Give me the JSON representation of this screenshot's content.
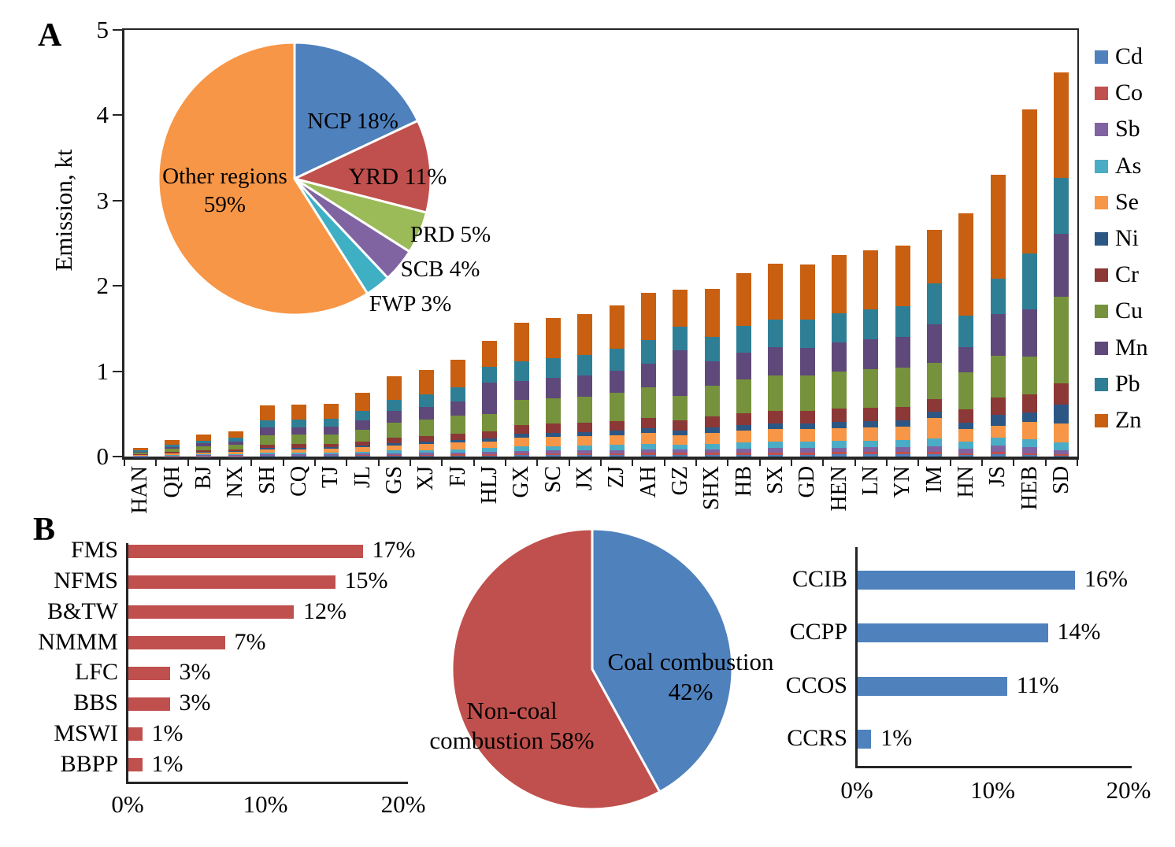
{
  "panels": {
    "a_label": "A",
    "b_label": "B"
  },
  "chart_data": [
    {
      "id": "provincial_emissions",
      "type": "bar",
      "stacked": true,
      "orientation": "vertical",
      "title": "",
      "xlabel": "",
      "ylabel": "Emission, kt",
      "ylim": [
        0,
        5
      ],
      "yticks": [
        "0",
        "1",
        "2",
        "3",
        "4",
        "5"
      ],
      "grid": false,
      "legend_position": "right",
      "categories": [
        "HAN",
        "QH",
        "BJ",
        "NX",
        "SH",
        "CQ",
        "TJ",
        "JL",
        "GS",
        "XJ",
        "FJ",
        "HLJ",
        "GX",
        "SC",
        "JX",
        "ZJ",
        "AH",
        "GZ",
        "SHX",
        "HB",
        "SX",
        "GD",
        "HEN",
        "LN",
        "YN",
        "IM",
        "HN",
        "JS",
        "HEB",
        "SD"
      ],
      "totals_kt": [
        0.1,
        0.19,
        0.26,
        0.3,
        0.6,
        0.61,
        0.62,
        0.75,
        0.94,
        1.02,
        1.14,
        1.36,
        1.57,
        1.62,
        1.67,
        1.77,
        1.92,
        1.96,
        1.97,
        2.15,
        2.26,
        2.25,
        2.36,
        2.42,
        2.47,
        2.66,
        2.85,
        3.3,
        4.07,
        4.5
      ],
      "series_names": [
        "Cd",
        "Co",
        "Sb",
        "As",
        "Se",
        "Ni",
        "Cr",
        "Cu",
        "Mn",
        "Pb",
        "Zn"
      ],
      "series_colors": [
        "#4F81BD",
        "#C0504D",
        "#8064A2",
        "#4BACC6",
        "#F79646",
        "#2C5784",
        "#8C3836",
        "#76923C",
        "#5F497A",
        "#2E7F96",
        "#C95F10"
      ],
      "composition_profiles": {
        "small": [
          0.012,
          0.015,
          0.03,
          0.045,
          0.08,
          0.035,
          0.07,
          0.18,
          0.13,
          0.13,
          0.273
        ],
        "default": [
          0.01,
          0.012,
          0.022,
          0.033,
          0.065,
          0.03,
          0.065,
          0.185,
          0.145,
          0.145,
          0.288
        ],
        "mn_heavy": [
          0.01,
          0.012,
          0.02,
          0.03,
          0.055,
          0.028,
          0.06,
          0.15,
          0.27,
          0.14,
          0.225
        ],
        "se_pb": [
          0.01,
          0.012,
          0.022,
          0.035,
          0.09,
          0.03,
          0.055,
          0.16,
          0.17,
          0.18,
          0.236
        ],
        "zn_heavy": [
          0.006,
          0.008,
          0.018,
          0.028,
          0.055,
          0.025,
          0.055,
          0.15,
          0.105,
          0.129,
          0.421
        ],
        "js": [
          0.008,
          0.01,
          0.022,
          0.028,
          0.042,
          0.037,
          0.062,
          0.15,
          0.147,
          0.127,
          0.367
        ],
        "heb": [
          0.005,
          0.005,
          0.018,
          0.022,
          0.05,
          0.027,
          0.052,
          0.11,
          0.135,
          0.16,
          0.416
        ],
        "cu_heavy": [
          0.003,
          0.003,
          0.01,
          0.02,
          0.05,
          0.05,
          0.055,
          0.225,
          0.165,
          0.145,
          0.274
        ]
      },
      "category_profile": [
        "small",
        "small",
        "small",
        "small",
        "default",
        "default",
        "default",
        "default",
        "default",
        "default",
        "default",
        "mn_heavy",
        "default",
        "default",
        "default",
        "default",
        "default",
        "mn_heavy",
        "default",
        "default",
        "default",
        "default",
        "default",
        "default",
        "default",
        "se_pb",
        "zn_heavy",
        "js",
        "heb",
        "cu_heavy"
      ]
    },
    {
      "id": "region_share_pie",
      "type": "pie",
      "title": "",
      "slices": [
        {
          "label": "NCP 18%",
          "value": 18,
          "color": "#4F81BD"
        },
        {
          "label": "YRD 11%",
          "value": 11,
          "color": "#C0504D"
        },
        {
          "label": "PRD 5%",
          "value": 5,
          "color": "#9BBB59"
        },
        {
          "label": "SCB 4%",
          "value": 4,
          "color": "#8064A2"
        },
        {
          "label": "FWP 3%",
          "value": 3,
          "color": "#3FAFC4"
        },
        {
          "label": "Other regions 59%",
          "value": 59,
          "color": "#F79646"
        }
      ]
    },
    {
      "id": "noncoal_source_bars",
      "type": "bar",
      "orientation": "horizontal",
      "title": "",
      "color": "#C0504D",
      "categories": [
        "FMS",
        "NFMS",
        "B&TW",
        "NMMM",
        "LFC",
        "BBS",
        "MSWI",
        "BBPP"
      ],
      "values_pct": [
        17,
        15,
        12,
        7,
        3,
        3,
        1,
        1
      ],
      "value_labels": [
        "17%",
        "15%",
        "12%",
        "7%",
        "3%",
        "3%",
        "1%",
        "1%"
      ],
      "xlim": [
        0,
        20
      ],
      "xticks": [
        "0%",
        "10%",
        "20%"
      ]
    },
    {
      "id": "combustion_pie",
      "type": "pie",
      "title": "",
      "slices": [
        {
          "label": "Coal combustion 42%",
          "value": 42,
          "color": "#4F81BD"
        },
        {
          "label": "Non-coal combustion 58%",
          "value": 58,
          "color": "#C0504D"
        }
      ]
    },
    {
      "id": "coal_source_bars",
      "type": "bar",
      "orientation": "horizontal",
      "title": "",
      "color": "#4F81BD",
      "categories": [
        "CCIB",
        "CCPP",
        "CCOS",
        "CCRS"
      ],
      "values_pct": [
        16,
        14,
        11,
        1
      ],
      "value_labels": [
        "16%",
        "14%",
        "11%",
        "1%"
      ],
      "xlim": [
        0,
        20
      ],
      "xticks": [
        "0%",
        "10%",
        "20%"
      ]
    }
  ]
}
